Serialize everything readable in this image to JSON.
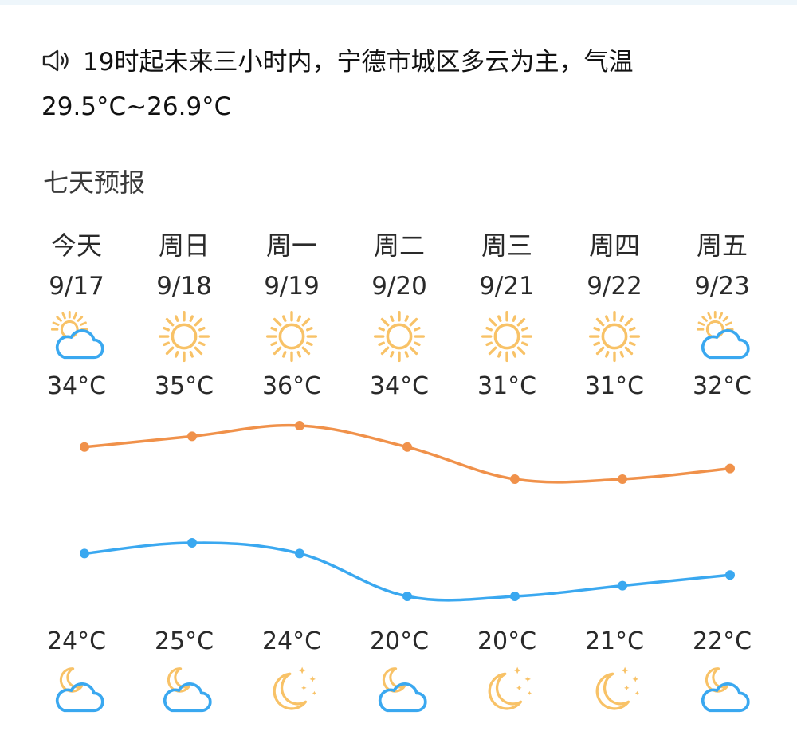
{
  "notice": {
    "icon": "speaker-icon",
    "text": "19时起未来三小时内，宁德市城区多云为主，气温29.5°C~26.9°C"
  },
  "section_title": "七天预报",
  "days": [
    {
      "name": "今天",
      "date": "9/17",
      "day_icon": "partly-cloudy-day-icon",
      "high": "34°C",
      "low": "24°C",
      "night_icon": "partly-cloudy-night-icon"
    },
    {
      "name": "周日",
      "date": "9/18",
      "day_icon": "sun-icon",
      "high": "35°C",
      "low": "25°C",
      "night_icon": "partly-cloudy-night-icon"
    },
    {
      "name": "周一",
      "date": "9/19",
      "day_icon": "sun-icon",
      "high": "36°C",
      "low": "24°C",
      "night_icon": "clear-night-icon"
    },
    {
      "name": "周二",
      "date": "9/20",
      "day_icon": "sun-icon",
      "high": "34°C",
      "low": "20°C",
      "night_icon": "partly-cloudy-night-icon"
    },
    {
      "name": "周三",
      "date": "9/21",
      "day_icon": "sun-icon",
      "high": "31°C",
      "low": "20°C",
      "night_icon": "clear-night-icon"
    },
    {
      "name": "周四",
      "date": "9/22",
      "day_icon": "sun-icon",
      "high": "31°C",
      "low": "21°C",
      "night_icon": "clear-night-icon"
    },
    {
      "name": "周五",
      "date": "9/23",
      "day_icon": "partly-cloudy-day-icon",
      "high": "32°C",
      "low": "22°C",
      "night_icon": "partly-cloudy-night-icon"
    }
  ],
  "chart_data": {
    "type": "line",
    "categories": [
      "9/17",
      "9/18",
      "9/19",
      "9/20",
      "9/21",
      "9/22",
      "9/23"
    ],
    "series": [
      {
        "values": [
          34,
          35,
          36,
          34,
          31,
          31,
          32
        ],
        "color": "#f0914a"
      },
      {
        "values": [
          24,
          25,
          24,
          20,
          20,
          21,
          22
        ],
        "color": "#3aa8f0"
      }
    ],
    "colors": {
      "high": "#f0914a",
      "low": "#3aa8f0",
      "sun": "#f8c267",
      "cloud": "#3aa8f0"
    }
  }
}
